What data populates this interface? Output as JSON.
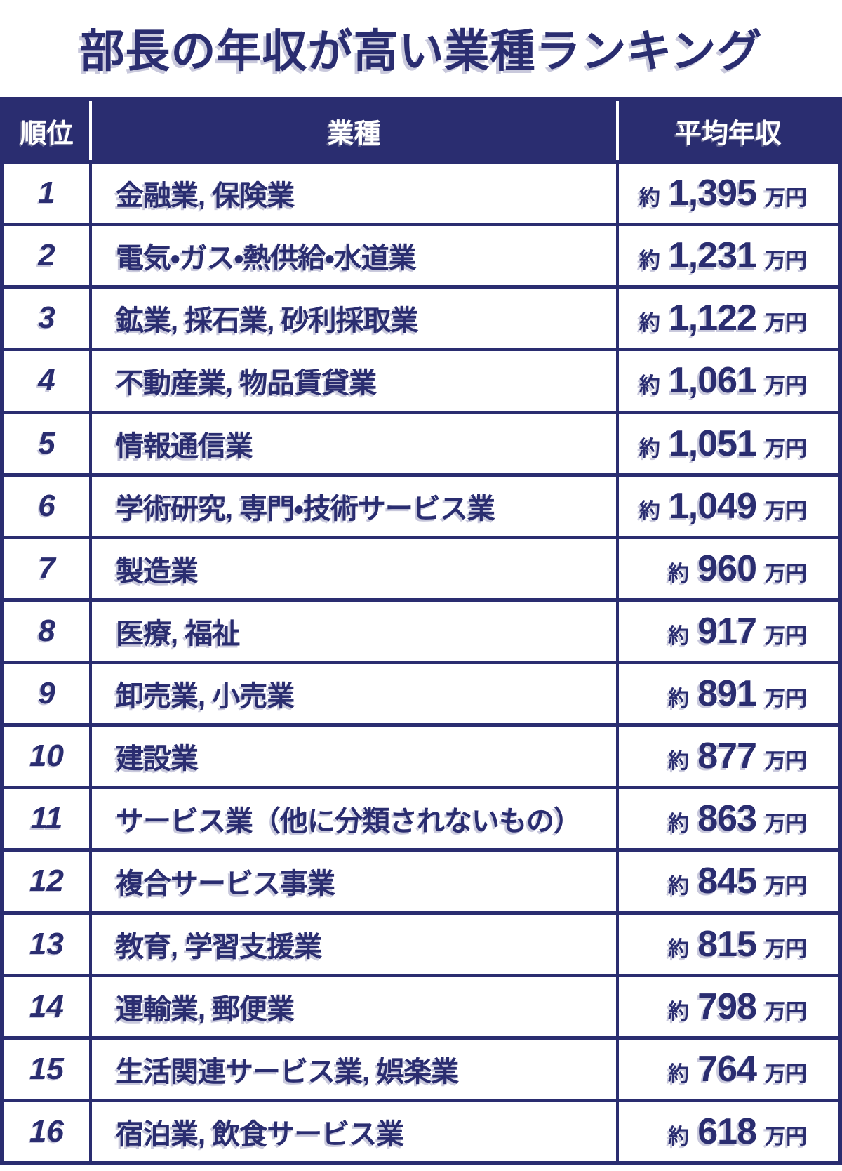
{
  "title": "部長の年収が高い業種ランキング",
  "colors": {
    "navy": "#2a2d70",
    "background": "#ffffff",
    "header_text": "#ffffff",
    "text_shadow": "#c9c9dc"
  },
  "table": {
    "headers": {
      "rank": "順位",
      "industry": "業種",
      "salary": "平均年収"
    },
    "rows": [
      {
        "rank": "1",
        "industry": "金融業, 保険業",
        "approx": "約",
        "amount": "1,395",
        "unit": "万円"
      },
      {
        "rank": "2",
        "industry": "電気・ガス・熱供給・水道業",
        "approx": "約",
        "amount": "1,231",
        "unit": "万円"
      },
      {
        "rank": "3",
        "industry": "鉱業, 採石業, 砂利採取業",
        "approx": "約",
        "amount": "1,122",
        "unit": "万円"
      },
      {
        "rank": "4",
        "industry": "不動産業, 物品賃貸業",
        "approx": "約",
        "amount": "1,061",
        "unit": "万円"
      },
      {
        "rank": "5",
        "industry": "情報通信業",
        "approx": "約",
        "amount": "1,051",
        "unit": "万円"
      },
      {
        "rank": "6",
        "industry": "学術研究, 専門・技術サービス業",
        "approx": "約",
        "amount": "1,049",
        "unit": "万円"
      },
      {
        "rank": "7",
        "industry": "製造業",
        "approx": "約",
        "amount": "960",
        "unit": "万円"
      },
      {
        "rank": "8",
        "industry": "医療, 福祉",
        "approx": "約",
        "amount": "917",
        "unit": "万円"
      },
      {
        "rank": "9",
        "industry": "卸売業, 小売業",
        "approx": "約",
        "amount": "891",
        "unit": "万円"
      },
      {
        "rank": "10",
        "industry": "建設業",
        "approx": "約",
        "amount": "877",
        "unit": "万円"
      },
      {
        "rank": "11",
        "industry": "サービス業（他に分類されないもの）",
        "approx": "約",
        "amount": "863",
        "unit": "万円"
      },
      {
        "rank": "12",
        "industry": "複合サービス事業",
        "approx": "約",
        "amount": "845",
        "unit": "万円"
      },
      {
        "rank": "13",
        "industry": "教育, 学習支援業",
        "approx": "約",
        "amount": "815",
        "unit": "万円"
      },
      {
        "rank": "14",
        "industry": "運輸業, 郵便業",
        "approx": "約",
        "amount": "798",
        "unit": "万円"
      },
      {
        "rank": "15",
        "industry": "生活関連サービス業, 娯楽業",
        "approx": "約",
        "amount": "764",
        "unit": "万円"
      },
      {
        "rank": "16",
        "industry": "宿泊業, 飲食サービス業",
        "approx": "約",
        "amount": "618",
        "unit": "万円"
      }
    ]
  },
  "chart_data": {
    "type": "table",
    "title": "部長の年収が高い業種ランキング",
    "columns": [
      "順位",
      "業種",
      "平均年収"
    ],
    "categories": [
      "金融業, 保険業",
      "電気・ガス・熱供給・水道業",
      "鉱業, 採石業, 砂利採取業",
      "不動産業, 物品賃貸業",
      "情報通信業",
      "学術研究, 専門・技術サービス業",
      "製造業",
      "医療, 福祉",
      "卸売業, 小売業",
      "建設業",
      "サービス業（他に分類されないもの）",
      "複合サービス事業",
      "教育, 学習支援業",
      "運輸業, 郵便業",
      "生活関連サービス業, 娯楽業",
      "宿泊業, 飲食サービス業"
    ],
    "values_approx_man_yen": [
      1395,
      1231,
      1122,
      1061,
      1051,
      1049,
      960,
      917,
      891,
      877,
      863,
      845,
      815,
      798,
      764,
      618
    ],
    "value_format": "約 {n} 万円"
  }
}
